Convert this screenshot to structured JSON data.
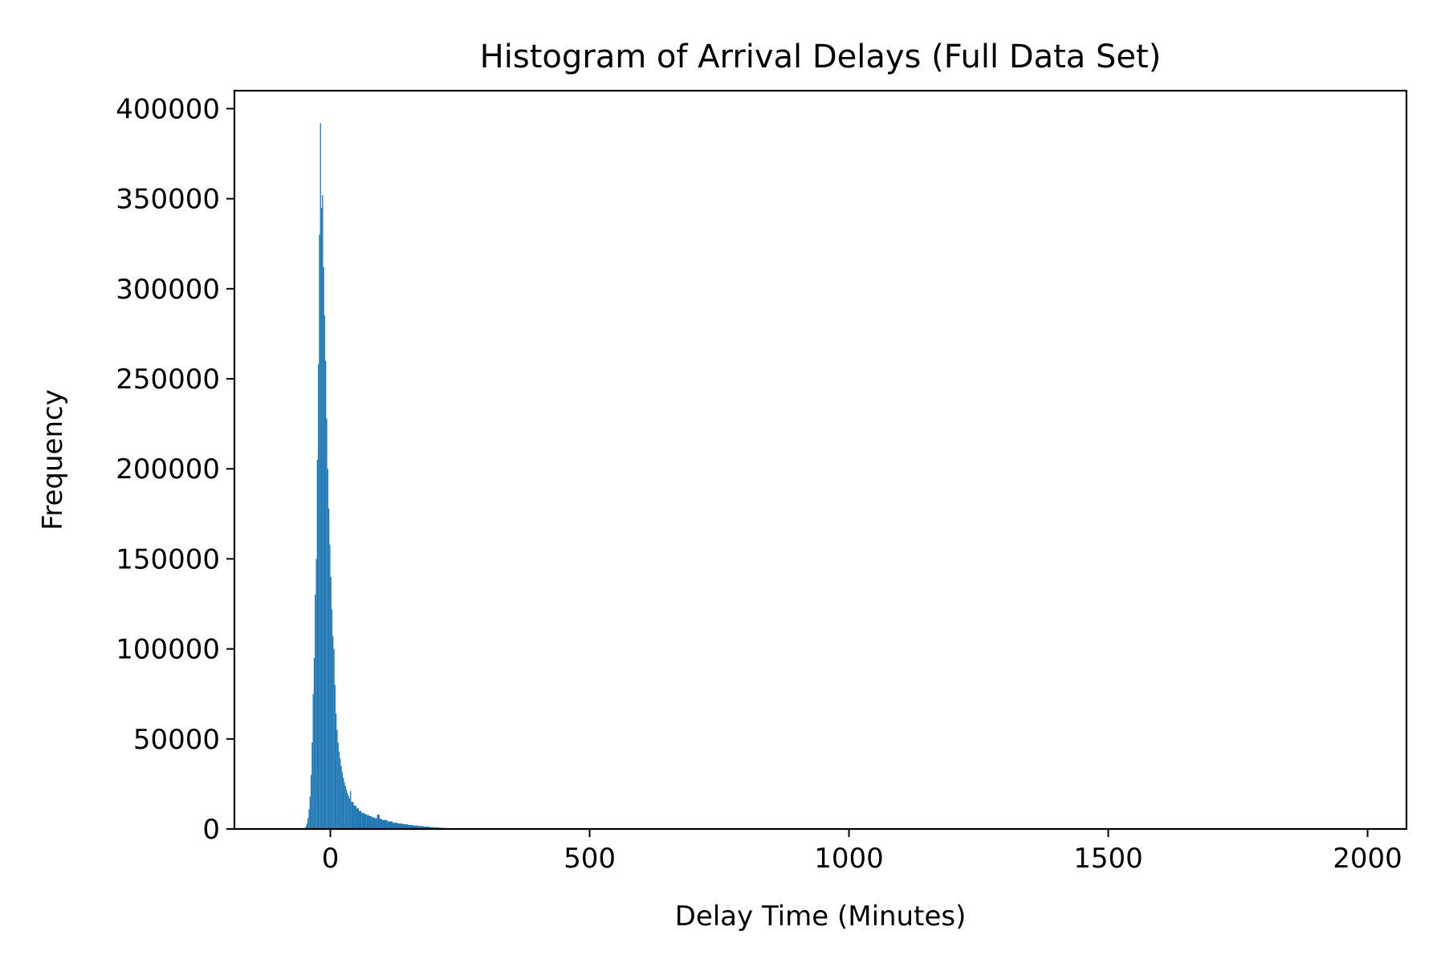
{
  "chart_data": {
    "type": "bar",
    "title": "Histogram of Arrival Delays (Full Data Set)",
    "xlabel": "Delay Time (Minutes)",
    "ylabel": "Frequency",
    "xlim": [
      -185,
      2075
    ],
    "ylim": [
      0,
      410000
    ],
    "grid": false,
    "bar_color": "#1f77b4",
    "x_ticks": [
      0,
      500,
      1000,
      1500,
      2000
    ],
    "y_ticks": [
      0,
      50000,
      100000,
      150000,
      200000,
      250000,
      300000,
      350000,
      400000
    ],
    "x_tick_labels": [
      "0",
      "500",
      "1000",
      "1500",
      "2000"
    ],
    "y_tick_labels": [
      "0",
      "50000",
      "100000",
      "150000",
      "200000",
      "250000",
      "300000",
      "350000",
      "400000"
    ],
    "series": [
      {
        "bin_width": 2,
        "x": [
          -50,
          -48,
          -46,
          -44,
          -42,
          -40,
          -38,
          -36,
          -34,
          -32,
          -30,
          -28,
          -26,
          -24,
          -22,
          -20,
          -18,
          -16,
          -14,
          -12,
          -10,
          -8,
          -6,
          -4,
          -2,
          0,
          2,
          4,
          6,
          8,
          10,
          12,
          14,
          16,
          18,
          20,
          22,
          24,
          26,
          28,
          30,
          32,
          34,
          36,
          38,
          40,
          45,
          50,
          55,
          60,
          65,
          70,
          75,
          80,
          85,
          90,
          95,
          100,
          110,
          120,
          130,
          140,
          150,
          160,
          170,
          180,
          190,
          200,
          210,
          220,
          230,
          240,
          250,
          260,
          270,
          280,
          290,
          300
        ],
        "values": [
          500,
          1500,
          3000,
          6000,
          11000,
          18000,
          30000,
          48000,
          75000,
          95000,
          130000,
          150000,
          205000,
          258000,
          330000,
          392000,
          345000,
          352000,
          312000,
          285000,
          260000,
          228000,
          200000,
          178000,
          158000,
          140000,
          122000,
          107000,
          100000,
          80000,
          64000,
          55000,
          48000,
          43000,
          39000,
          35000,
          31500,
          28500,
          26000,
          24000,
          22000,
          20000,
          18500,
          17000,
          21000,
          15000,
          13000,
          11500,
          10000,
          9000,
          8300,
          7700,
          7100,
          6500,
          6000,
          8000,
          5600,
          5000,
          4200,
          3500,
          3000,
          2600,
          2200,
          1900,
          1600,
          1300,
          1050,
          850,
          650,
          500,
          380,
          280,
          200,
          140,
          100,
          70,
          50,
          30
        ]
      }
    ]
  }
}
